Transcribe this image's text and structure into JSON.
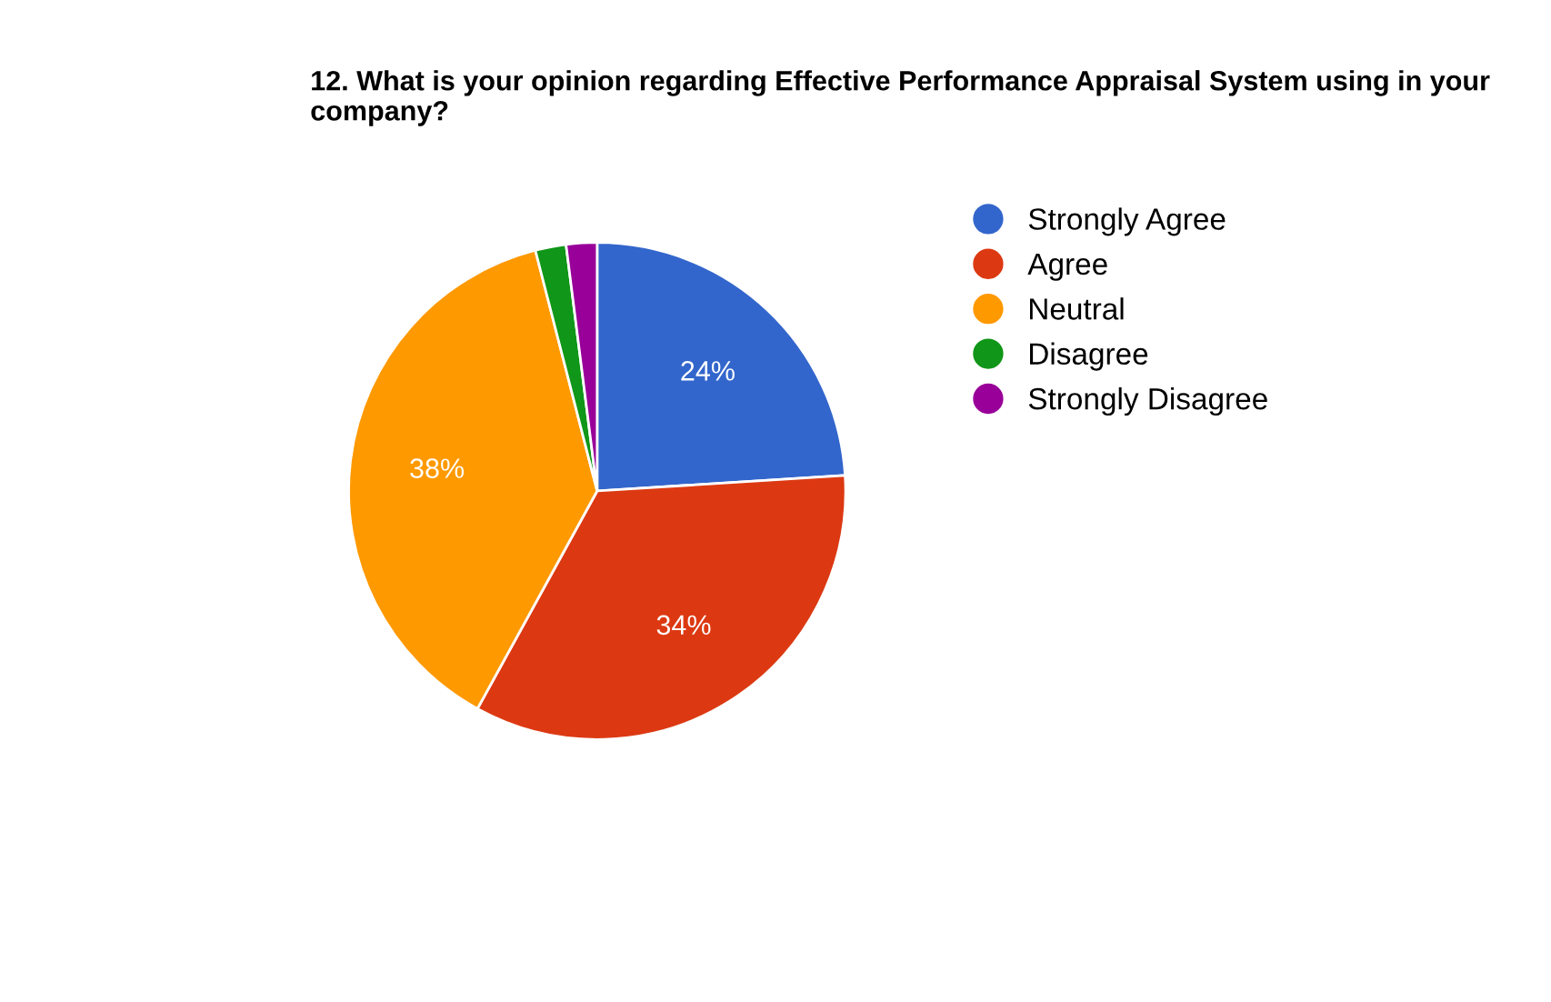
{
  "chart_data": {
    "type": "pie",
    "title": "12. What is your opinion regarding Effective Performance Appraisal System using in your company?",
    "categories": [
      "Strongly Agree",
      "Agree",
      "Neutral",
      "Disagree",
      "Strongly Disagree"
    ],
    "values": [
      24,
      34,
      38,
      2,
      2
    ],
    "colors": [
      "#3366cc",
      "#dc3912",
      "#ff9900",
      "#109618",
      "#990099"
    ],
    "value_labels": [
      "24%",
      "34%",
      "38%",
      null,
      null
    ],
    "legend": "right"
  }
}
